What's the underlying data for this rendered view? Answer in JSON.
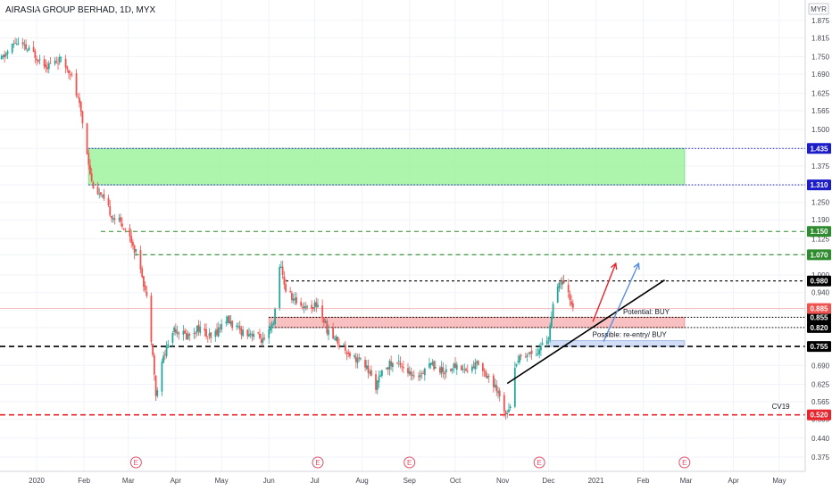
{
  "header": {
    "title": "AIRASIA GROUP BERHAD, 1D, MYX"
  },
  "currency_badge": "MYR",
  "colors": {
    "up": "#26a69a",
    "down": "#ef5350",
    "green_zone": "#9ff29f",
    "red_zone": "#f7b5b5",
    "blue_zone": "#c9d8f5",
    "blue_line": "#2c2ccf",
    "green_line": "#2e8b2e",
    "red_line": "#e8242c",
    "black": "#000000",
    "arrow_red": "#e8242c",
    "arrow_blue": "#5a8fe0",
    "e_marker": "#e0506a"
  },
  "chart_data": {
    "type": "candlestick",
    "title": "AIRASIA GROUP BERHAD, 1D, MYX",
    "y_axis": {
      "ticks": [
        "1.875",
        "1.815",
        "1.750",
        "1.690",
        "1.625",
        "1.565",
        "1.500",
        "1.435",
        "1.375",
        "1.310",
        "1.250",
        "1.190",
        "1.125",
        "1.070",
        "1.000",
        "0.940",
        "0.880",
        "0.820",
        "0.755",
        "0.690",
        "0.625",
        "0.565",
        "0.505",
        "0.440",
        "0.375"
      ],
      "range": [
        0.375,
        1.875
      ]
    },
    "x_axis": {
      "ticks": [
        {
          "label": "2020",
          "date": "2020-01-01"
        },
        {
          "label": "Feb",
          "date": "2020-02-01"
        },
        {
          "label": "Mar",
          "date": "2020-03-01"
        },
        {
          "label": "Apr",
          "date": "2020-04-01"
        },
        {
          "label": "May",
          "date": "2020-05-01"
        },
        {
          "label": "Jun",
          "date": "2020-06-01"
        },
        {
          "label": "Jul",
          "date": "2020-07-01"
        },
        {
          "label": "Aug",
          "date": "2020-08-01"
        },
        {
          "label": "Sep",
          "date": "2020-09-01"
        },
        {
          "label": "Oct",
          "date": "2020-10-01"
        },
        {
          "label": "Nov",
          "date": "2020-11-01"
        },
        {
          "label": "Dec",
          "date": "2020-12-01"
        },
        {
          "label": "2021",
          "date": "2021-01-01"
        },
        {
          "label": "Feb",
          "date": "2021-02-01"
        },
        {
          "label": "Mar",
          "date": "2021-03-01"
        },
        {
          "label": "Apr",
          "date": "2021-04-01"
        },
        {
          "label": "May",
          "date": "2021-05-01"
        }
      ],
      "range": [
        "2019-12-08",
        "2021-05-18"
      ]
    },
    "price_path": [
      [
        "2019-12-09",
        1.74
      ],
      [
        "2019-12-18",
        1.8
      ],
      [
        "2019-12-30",
        1.76
      ],
      [
        "2020-01-08",
        1.72
      ],
      [
        "2020-01-16",
        1.74
      ],
      [
        "2020-01-23",
        1.7
      ],
      [
        "2020-01-30",
        1.56
      ],
      [
        "2020-02-06",
        1.32
      ],
      [
        "2020-02-13",
        1.26
      ],
      [
        "2020-02-20",
        1.2
      ],
      [
        "2020-02-27",
        1.17
      ],
      [
        "2020-03-03",
        1.12
      ],
      [
        "2020-03-09",
        1.03
      ],
      [
        "2020-03-13",
        0.92
      ],
      [
        "2020-03-17",
        0.74
      ],
      [
        "2020-03-19",
        0.58
      ],
      [
        "2020-03-24",
        0.72
      ],
      [
        "2020-03-31",
        0.82
      ],
      [
        "2020-04-08",
        0.79
      ],
      [
        "2020-04-16",
        0.82
      ],
      [
        "2020-04-24",
        0.78
      ],
      [
        "2020-05-04",
        0.85
      ],
      [
        "2020-05-12",
        0.81
      ],
      [
        "2020-05-22",
        0.8
      ],
      [
        "2020-05-29",
        0.77
      ],
      [
        "2020-06-04",
        0.83
      ],
      [
        "2020-06-08",
        1.04
      ],
      [
        "2020-06-12",
        0.95
      ],
      [
        "2020-06-18",
        0.91
      ],
      [
        "2020-06-26",
        0.89
      ],
      [
        "2020-07-03",
        0.9
      ],
      [
        "2020-07-10",
        0.8
      ],
      [
        "2020-07-17",
        0.77
      ],
      [
        "2020-07-24",
        0.73
      ],
      [
        "2020-08-03",
        0.69
      ],
      [
        "2020-08-10",
        0.62
      ],
      [
        "2020-08-17",
        0.69
      ],
      [
        "2020-08-26",
        0.7
      ],
      [
        "2020-09-04",
        0.64
      ],
      [
        "2020-09-14",
        0.7
      ],
      [
        "2020-09-23",
        0.67
      ],
      [
        "2020-10-02",
        0.69
      ],
      [
        "2020-10-09",
        0.67
      ],
      [
        "2020-10-16",
        0.7
      ],
      [
        "2020-10-23",
        0.65
      ],
      [
        "2020-10-30",
        0.58
      ],
      [
        "2020-11-03",
        0.53
      ],
      [
        "2020-11-06",
        0.56
      ],
      [
        "2020-11-10",
        0.71
      ],
      [
        "2020-11-16",
        0.73
      ],
      [
        "2020-11-24",
        0.74
      ],
      [
        "2020-12-01",
        0.79
      ],
      [
        "2020-12-05",
        0.92
      ],
      [
        "2020-12-09",
        0.98
      ],
      [
        "2020-12-14",
        0.93
      ],
      [
        "2020-12-17",
        0.89
      ]
    ],
    "horizontal_levels": [
      {
        "label": "1.435",
        "price": 1.435,
        "color": "#2c2ccf",
        "dash": "dotted",
        "start": "2020-02-04"
      },
      {
        "label": "1.310",
        "price": 1.31,
        "color": "#2c2ccf",
        "dash": "dotted",
        "start": "2020-02-04"
      },
      {
        "label": "1.150",
        "price": 1.15,
        "color": "#2e8b2e",
        "dash": "dashed",
        "start": "2020-02-12"
      },
      {
        "label": "1.070",
        "price": 1.07,
        "color": "#2e8b2e",
        "dash": "dashed",
        "start": "2020-03-05"
      },
      {
        "label": "0.980",
        "price": 0.98,
        "color": "#000000",
        "dash": "short-dashed",
        "start": "2020-06-12"
      },
      {
        "label": "0.855",
        "price": 0.855,
        "color": "#000000",
        "dash": "dotted",
        "start": "2020-06-01"
      },
      {
        "label": "0.820",
        "price": 0.82,
        "color": "#000000",
        "dash": "dotted",
        "start": "2020-06-01"
      },
      {
        "label": "0.755",
        "price": 0.755,
        "color": "#000000",
        "dash": "long-dashed",
        "start": "2019-12-08"
      },
      {
        "label": "0.520",
        "price": 0.52,
        "color": "#e8242c",
        "dash": "long-dashed",
        "start": "2019-12-08"
      }
    ],
    "last_price": {
      "label": "0.885",
      "price": 0.885,
      "color": "#ef5350"
    },
    "zones": [
      {
        "name": "green-zone",
        "from": "2020-02-04",
        "to": "2021-02-28",
        "low": 1.31,
        "high": 1.435,
        "color": "#9ff29f"
      },
      {
        "name": "red-zone",
        "from": "2020-06-01",
        "to": "2021-02-28",
        "low": 0.82,
        "high": 0.855,
        "color": "#f7b5b5"
      },
      {
        "name": "blue-zone",
        "from": "2020-12-01",
        "to": "2021-02-28",
        "low": 0.755,
        "high": 0.775,
        "color": "#c9d8f5"
      }
    ],
    "annotations": [
      {
        "text": "Potential: BUY",
        "date": "2021-02-03",
        "price": 0.866
      },
      {
        "text": "Possible: re-entry/ BUY",
        "date": "2021-01-23",
        "price": 0.788
      },
      {
        "text": "CV19",
        "date": "2021-05-02",
        "price": 0.54
      }
    ],
    "trendline": {
      "from": [
        "2020-11-04",
        0.628
      ],
      "to": [
        "2021-02-15",
        0.983
      ]
    },
    "arrows": [
      {
        "color": "#e8242c",
        "from": [
          "2020-12-30",
          0.84
        ],
        "to": [
          "2021-01-14",
          1.04
        ]
      },
      {
        "color": "#5a8fe0",
        "from": [
          "2021-01-06",
          0.772
        ],
        "to": [
          "2021-01-29",
          1.04
        ]
      }
    ],
    "earnings_markers": [
      {
        "label": "E",
        "date": "2020-03-06"
      },
      {
        "label": "E",
        "date": "2020-07-03"
      },
      {
        "label": "E",
        "date": "2020-09-01"
      },
      {
        "label": "E",
        "date": "2020-11-25"
      },
      {
        "label": "E",
        "date": "2021-02-28"
      }
    ]
  }
}
